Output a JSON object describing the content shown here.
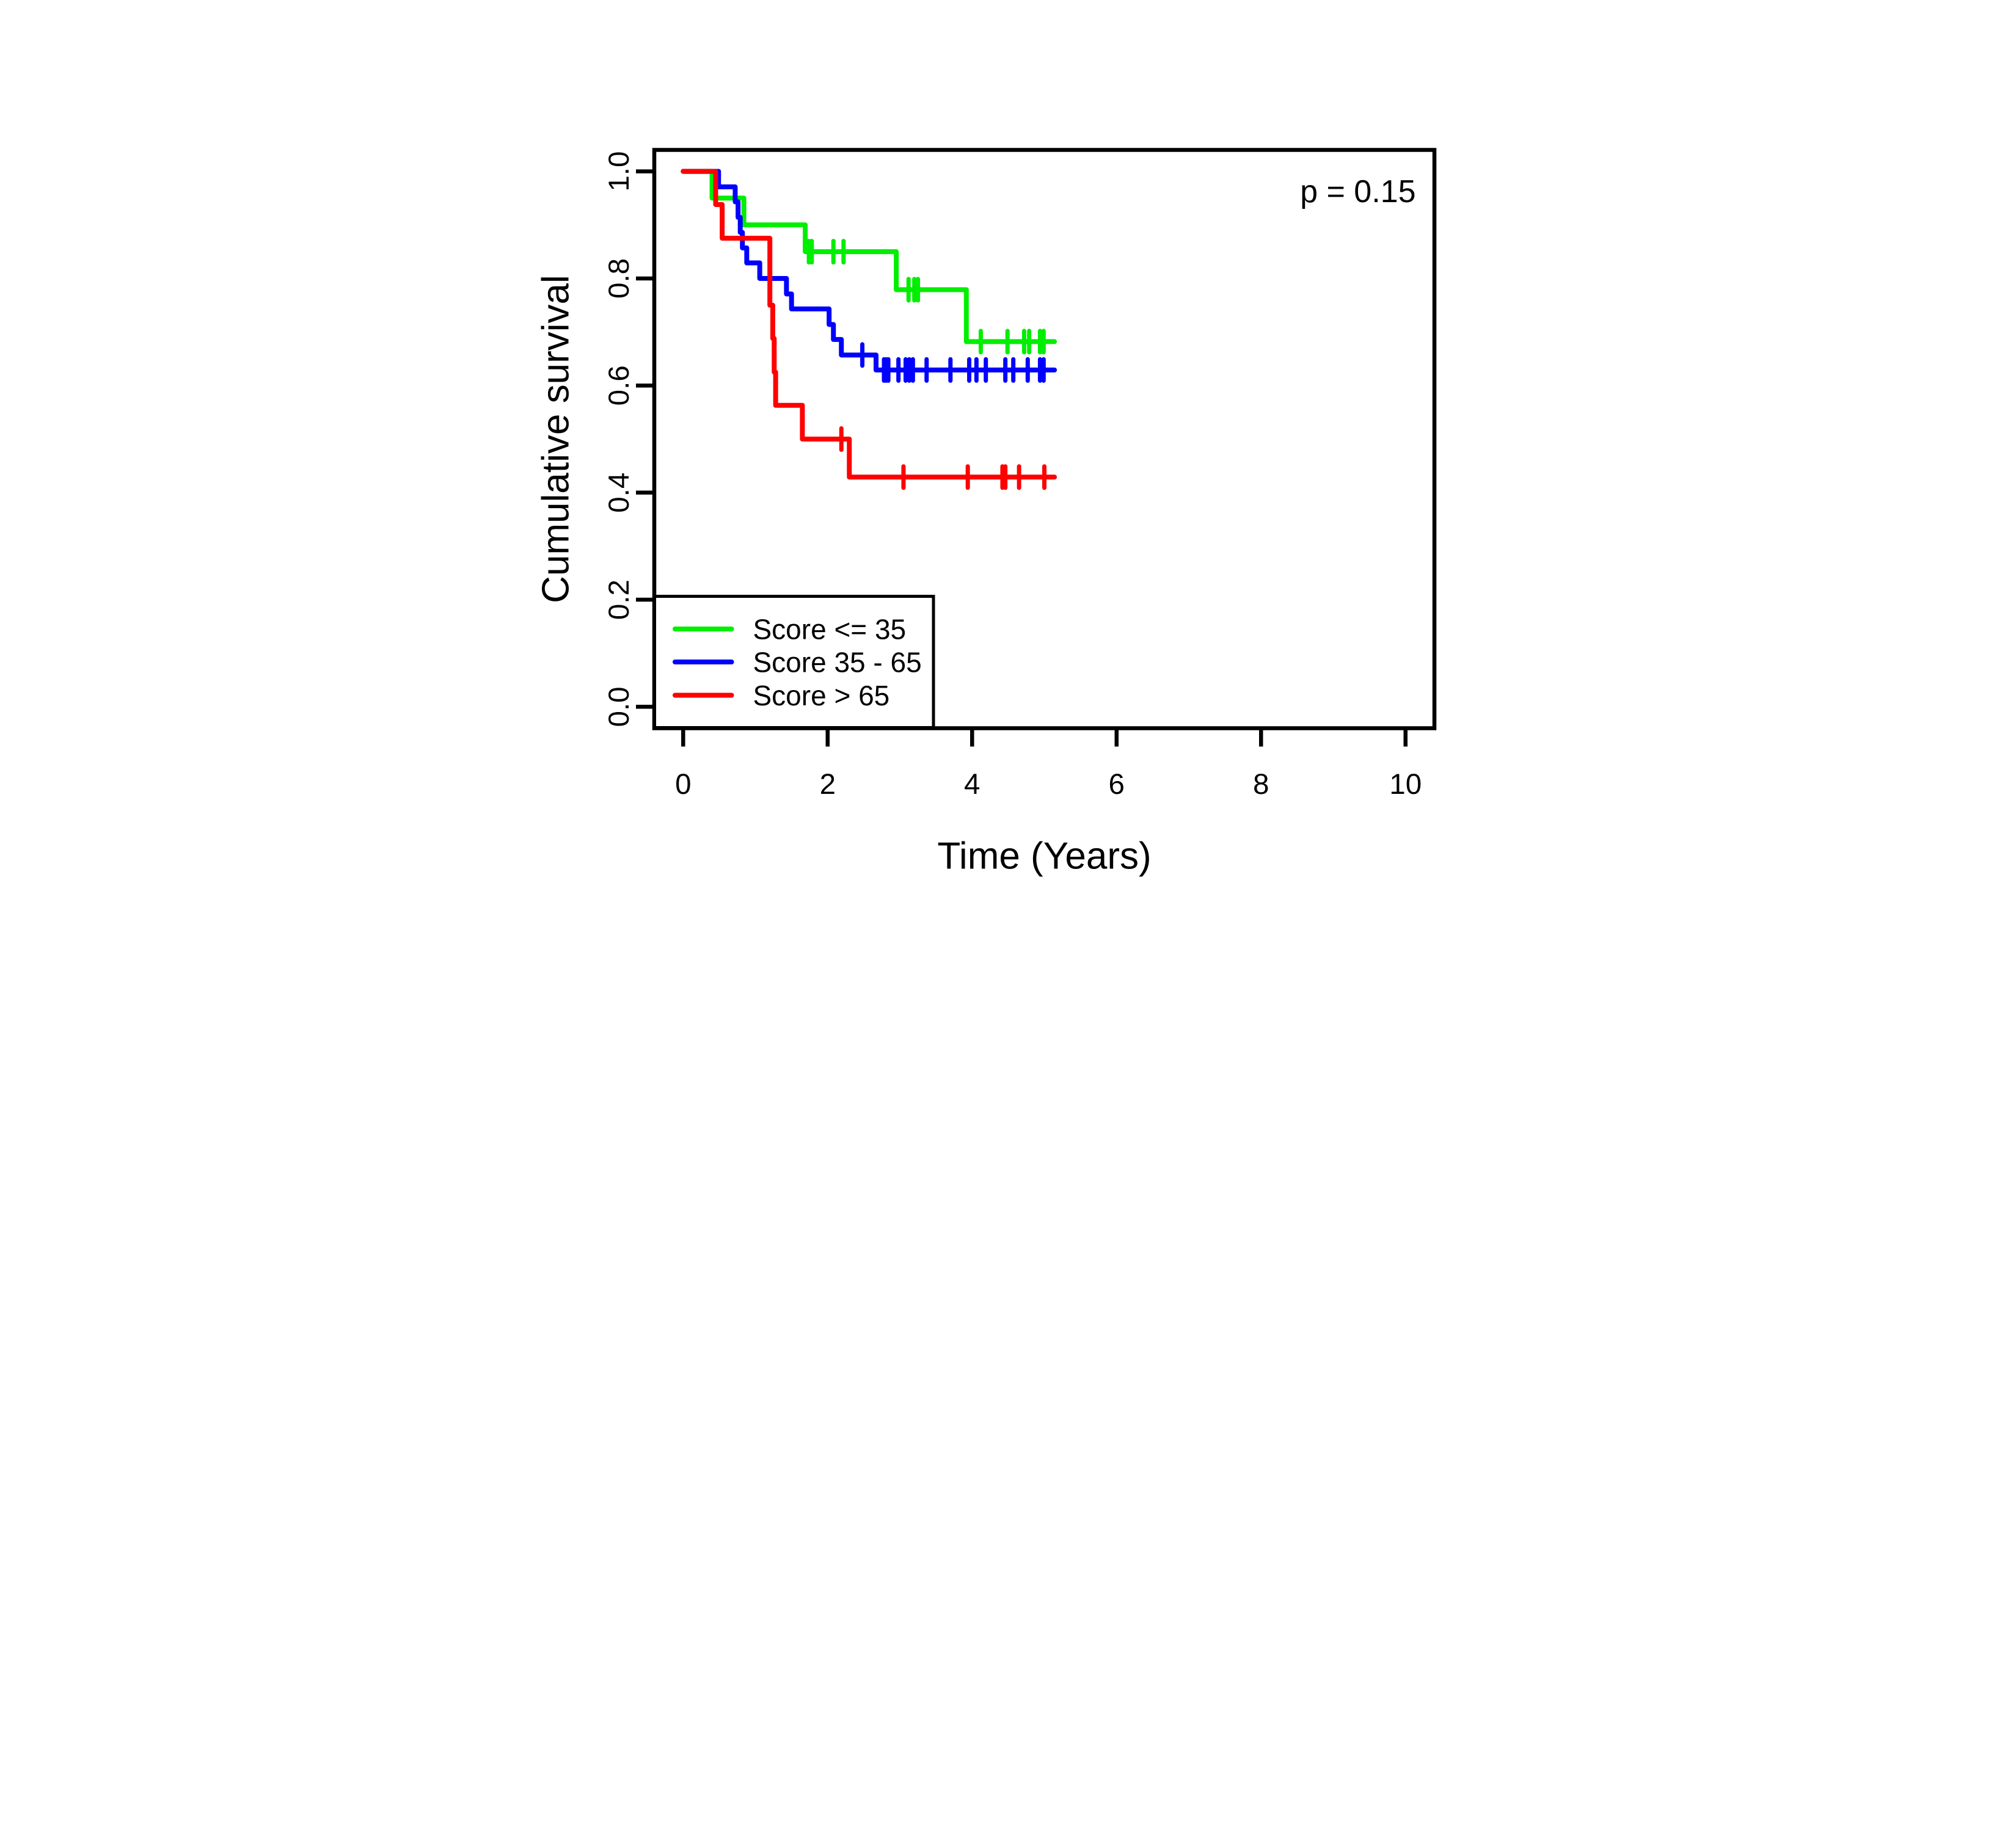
{
  "figure": {
    "background": "#FFFFFF",
    "axis_color": "#000000",
    "annotation": "p = 0.15"
  },
  "chart_data": {
    "type": "line",
    "subtype": "kaplan-meier-step",
    "title": "",
    "xlabel": "Time (Years)",
    "ylabel": "Cumulative survival",
    "xlim": [
      -0.4,
      10.4
    ],
    "ylim": [
      -0.04,
      1.04
    ],
    "grid": false,
    "x_ticks": [
      0,
      2,
      4,
      6,
      8,
      10
    ],
    "y_tick_values": [
      0.0,
      0.2,
      0.4,
      0.6,
      0.8,
      1.0
    ],
    "y_tick_labels": [
      "0.0",
      "0.2",
      "0.4",
      "0.6",
      "0.8",
      "1.0"
    ],
    "annotation": "p = 0.15",
    "legend_position": "bottom-left",
    "series": [
      {
        "name": "Score <= 35",
        "slug": "score-le-35",
        "color": "#00EE00",
        "start": [
          0,
          1.0
        ],
        "steps": [
          [
            0.4,
            0.95
          ],
          [
            0.84,
            0.9
          ],
          [
            1.69,
            0.85
          ],
          [
            2.95,
            0.779
          ],
          [
            3.92,
            0.682
          ]
        ],
        "censor_times": [
          1.74,
          1.78,
          2.08,
          2.22,
          3.12,
          3.2,
          3.25,
          4.12,
          4.49,
          4.72,
          4.79,
          4.94,
          4.99
        ],
        "end_time": 5.14
      },
      {
        "name": "Score 35 - 65",
        "slug": "score-35-65",
        "color": "#0000FF",
        "start": [
          0,
          1.0
        ],
        "steps": [
          [
            0.49,
            0.971
          ],
          [
            0.72,
            0.943
          ],
          [
            0.76,
            0.914
          ],
          [
            0.79,
            0.886
          ],
          [
            0.82,
            0.857
          ],
          [
            0.88,
            0.829
          ],
          [
            1.06,
            0.8
          ],
          [
            1.43,
            0.771
          ],
          [
            1.5,
            0.743
          ],
          [
            2.02,
            0.714
          ],
          [
            2.08,
            0.686
          ],
          [
            2.19,
            0.657
          ],
          [
            2.67,
            0.629
          ]
        ],
        "censor_times": [
          2.48,
          2.78,
          2.81,
          2.84,
          2.98,
          3.08,
          3.13,
          3.18,
          3.37,
          3.7,
          3.96,
          4.06,
          4.19,
          4.46,
          4.57,
          4.77,
          4.94,
          4.99
        ],
        "end_time": 5.14
      },
      {
        "name": "Score > 65",
        "slug": "score-gt-65",
        "color": "#FF0000",
        "start": [
          0,
          1.0
        ],
        "steps": [
          [
            0.45,
            0.938
          ],
          [
            0.54,
            0.875
          ],
          [
            1.2,
            0.75
          ],
          [
            1.24,
            0.688
          ],
          [
            1.26,
            0.625
          ],
          [
            1.28,
            0.563
          ],
          [
            1.65,
            0.5
          ],
          [
            2.3,
            0.429
          ]
        ],
        "censor_times": [
          2.19,
          3.05,
          3.94,
          4.42,
          4.46,
          4.65,
          5.0
        ],
        "end_time": 5.14
      }
    ]
  }
}
